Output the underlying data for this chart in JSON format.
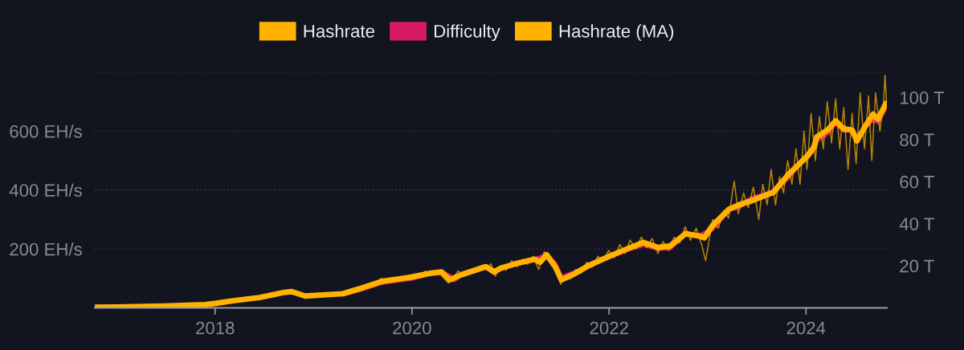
{
  "chart_data": {
    "type": "line",
    "legend": "top",
    "grid": "y",
    "xlim": [
      "2016-10-12",
      "2024-10-27"
    ],
    "xticks": [
      {
        "value": "2018-01-01",
        "label": "2018"
      },
      {
        "value": "2020-01-01",
        "label": "2020"
      },
      {
        "value": "2022-01-01",
        "label": "2022"
      },
      {
        "value": "2024-01-01",
        "label": "2024"
      }
    ],
    "ylim": [
      0,
      800
    ],
    "yticks": [
      {
        "value": 200,
        "label": "200 EH/s"
      },
      {
        "value": 400,
        "label": "400 EH/s"
      },
      {
        "value": 600,
        "label": "600 EH/s"
      },
      {
        "value": 800,
        "label": null
      }
    ],
    "y2lim": [
      0,
      112
    ],
    "y2ticks": [
      {
        "value": 20,
        "label": "20 T"
      },
      {
        "value": 40,
        "label": "40 T"
      },
      {
        "value": 60,
        "label": "60 T"
      },
      {
        "value": 80,
        "label": "80 T"
      },
      {
        "value": 100,
        "label": "100 T"
      }
    ],
    "series": [
      {
        "name": "Hashrate",
        "color": "#ffb300",
        "x": [
          "2016-10-12",
          "2017-01-15",
          "2017-04-15",
          "2017-07-15",
          "2017-10-15",
          "2018-01-01",
          "2018-03-01",
          "2018-05-01",
          "2018-07-01",
          "2018-08-15",
          "2018-09-15",
          "2018-10-15",
          "2018-11-20",
          "2018-12-20",
          "2019-02-01",
          "2019-03-15",
          "2019-05-01",
          "2019-06-01",
          "2019-07-01",
          "2019-08-01",
          "2019-08-20",
          "2019-09-10",
          "2019-10-01",
          "2019-10-20",
          "2019-11-10",
          "2019-12-01",
          "2019-12-20",
          "2020-01-10",
          "2020-02-01",
          "2020-02-20",
          "2020-03-10",
          "2020-04-01",
          "2020-04-20",
          "2020-05-15",
          "2020-06-01",
          "2020-06-20",
          "2020-07-15",
          "2020-08-01",
          "2020-08-20",
          "2020-09-10",
          "2020-10-01",
          "2020-10-20",
          "2020-11-05",
          "2020-11-25",
          "2020-12-15",
          "2021-01-05",
          "2021-01-25",
          "2021-02-15",
          "2021-03-05",
          "2021-03-25",
          "2021-04-15",
          "2021-05-05",
          "2021-05-25",
          "2021-06-10",
          "2021-06-25",
          "2021-07-05",
          "2021-07-20",
          "2021-08-10",
          "2021-08-30",
          "2021-09-20",
          "2021-10-10",
          "2021-10-30",
          "2021-11-20",
          "2021-12-10",
          "2021-12-30",
          "2022-01-20",
          "2022-02-10",
          "2022-03-01",
          "2022-03-20",
          "2022-04-10",
          "2022-05-01",
          "2022-05-20",
          "2022-06-10",
          "2022-07-01",
          "2022-07-20",
          "2022-08-10",
          "2022-08-30",
          "2022-09-20",
          "2022-10-10",
          "2022-10-30",
          "2022-11-20",
          "2022-12-10",
          "2022-12-25",
          "2023-01-20",
          "2023-02-10",
          "2023-03-01",
          "2023-03-20",
          "2023-04-10",
          "2023-04-25",
          "2023-05-15",
          "2023-06-01",
          "2023-06-20",
          "2023-07-10",
          "2023-07-25",
          "2023-08-10",
          "2023-08-25",
          "2023-09-10",
          "2023-09-25",
          "2023-10-10",
          "2023-10-25",
          "2023-11-10",
          "2023-11-25",
          "2023-12-10",
          "2023-12-25",
          "2024-01-05",
          "2024-01-20",
          "2024-02-05",
          "2024-02-20",
          "2024-03-05",
          "2024-03-20",
          "2024-04-05",
          "2024-04-20",
          "2024-05-05",
          "2024-05-20",
          "2024-06-05",
          "2024-06-20",
          "2024-07-05",
          "2024-07-20",
          "2024-08-05",
          "2024-08-20",
          "2024-09-01",
          "2024-09-15",
          "2024-10-01",
          "2024-10-15",
          "2024-10-20",
          "2024-10-27"
        ],
        "values": [
          2,
          4,
          4,
          7,
          9,
          16,
          24,
          32,
          40,
          50,
          56,
          52,
          38,
          42,
          46,
          44,
          52,
          62,
          72,
          78,
          88,
          100,
          88,
          104,
          92,
          106,
          94,
          112,
          102,
          125,
          110,
          128,
          110,
          84,
          100,
          125,
          108,
          130,
          118,
          142,
          130,
          150,
          108,
          140,
          128,
          160,
          140,
          165,
          148,
          175,
          130,
          190,
          165,
          135,
          112,
          80,
          105,
          98,
          130,
          118,
          155,
          138,
          175,
          160,
          195,
          170,
          215,
          185,
          230,
          200,
          240,
          205,
          235,
          185,
          225,
          195,
          240,
          220,
          275,
          230,
          270,
          215,
          160,
          300,
          270,
          330,
          305,
          430,
          320,
          390,
          340,
          410,
          300,
          420,
          350,
          470,
          350,
          445,
          390,
          500,
          420,
          540,
          420,
          600,
          470,
          660,
          500,
          650,
          540,
          700,
          560,
          710,
          540,
          680,
          470,
          660,
          490,
          730,
          540,
          720,
          500,
          730,
          600,
          700,
          790,
          680
        ]
      },
      {
        "name": "Difficulty",
        "color": "#d81b60",
        "axis": "y2",
        "x": [
          "2019-04-20",
          "2019-07-01",
          "2019-09-12",
          "2019-11-05",
          "2020-01-01",
          "2020-03-13",
          "2020-04-20",
          "2020-05-20",
          "2020-06-05",
          "2020-07-01",
          "2020-10-01",
          "2020-11-01",
          "2020-11-25",
          "2021-01-20",
          "2021-04-01",
          "2021-05-15",
          "2021-06-15",
          "2021-07-08",
          "2021-08-25",
          "2021-10-20",
          "2022-01-01",
          "2022-03-08",
          "2022-05-08",
          "2022-07-01",
          "2022-08-15",
          "2022-10-12",
          "2022-11-25",
          "2022-12-20",
          "2023-01-20",
          "2023-03-22",
          "2023-04-28",
          "2023-06-18",
          "2023-08-04",
          "2023-09-02",
          "2023-09-20",
          "2023-10-30",
          "2023-11-28",
          "2024-01-08",
          "2024-01-30",
          "2024-02-10",
          "2024-03-22",
          "2024-04-20",
          "2024-05-20",
          "2024-06-20",
          "2024-07-08",
          "2024-08-08",
          "2024-09-06",
          "2024-09-24",
          "2024-10-24"
        ],
        "values": [
          6.5,
          9.0,
          12.0,
          13.0,
          14.0,
          16.5,
          16.8,
          15.1,
          13.2,
          15.8,
          19.3,
          17.4,
          18.6,
          20.8,
          23.1,
          25.0,
          21.0,
          14.4,
          16.8,
          19.9,
          24.3,
          27.6,
          30.0,
          28.2,
          28.4,
          35.6,
          34.0,
          35.4,
          37.6,
          46.8,
          48.0,
          52.4,
          53.9,
          55.6,
          57.3,
          62.4,
          67.3,
          72.0,
          75.5,
          79.5,
          83.1,
          88.1,
          84.4,
          84.4,
          79.5,
          86.1,
          89.5,
          88.4,
          95.7
        ]
      },
      {
        "name": "Hashrate (MA)",
        "color": "#ffb300",
        "x": [
          "2016-10-12",
          "2017-01-01",
          "2017-07-01",
          "2017-11-24",
          "2018-01-01",
          "2018-03-15",
          "2018-06-15",
          "2018-09-12",
          "2018-10-12",
          "2018-12-01",
          "2019-02-05",
          "2019-04-20",
          "2019-07-01",
          "2019-09-12",
          "2019-11-05",
          "2020-01-01",
          "2020-03-13",
          "2020-04-20",
          "2020-05-20",
          "2020-07-01",
          "2020-10-01",
          "2020-11-01",
          "2020-11-25",
          "2021-01-20",
          "2021-04-01",
          "2021-04-20",
          "2021-05-15",
          "2021-06-15",
          "2021-07-08",
          "2021-08-25",
          "2021-10-20",
          "2022-01-01",
          "2022-03-08",
          "2022-05-08",
          "2022-07-01",
          "2022-08-15",
          "2022-10-12",
          "2022-11-25",
          "2022-12-20",
          "2023-01-20",
          "2023-03-22",
          "2023-04-28",
          "2023-06-18",
          "2023-08-04",
          "2023-09-02",
          "2023-09-20",
          "2023-10-30",
          "2023-11-28",
          "2024-01-08",
          "2024-01-30",
          "2024-02-10",
          "2024-03-22",
          "2024-04-20",
          "2024-05-20",
          "2024-06-20",
          "2024-07-08",
          "2024-08-08",
          "2024-09-06",
          "2024-09-24",
          "2024-10-24"
        ],
        "values": [
          2,
          3,
          6,
          11,
          15,
          25,
          35,
          52,
          55,
          40,
          44,
          48,
          68,
          90,
          97,
          105,
          118,
          122,
          95,
          112,
          140,
          122,
          135,
          150,
          165,
          155,
          180,
          140,
          95,
          115,
          145,
          175,
          200,
          222,
          205,
          210,
          252,
          245,
          238,
          280,
          335,
          350,
          365,
          382,
          392,
          412,
          455,
          480,
          518,
          545,
          580,
          605,
          635,
          608,
          604,
          567,
          617,
          658,
          641,
          695
        ]
      }
    ]
  }
}
